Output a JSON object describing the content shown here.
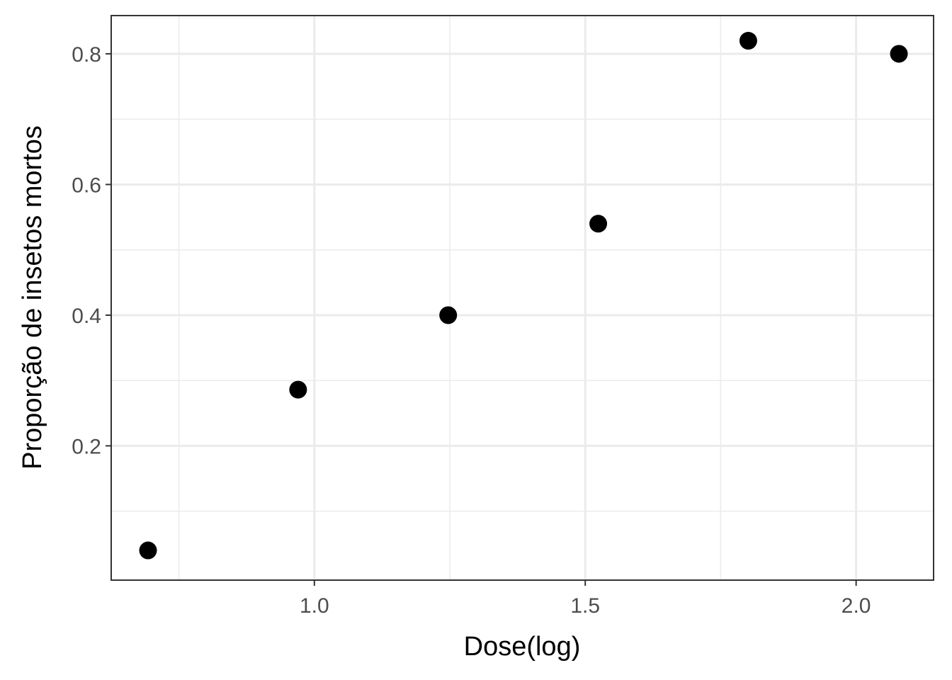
{
  "chart_data": {
    "type": "scatter",
    "title": "",
    "xlabel": "Dose(log)",
    "ylabel": "Proporção de insetos mortos",
    "xlim": [
      0.625,
      2.143
    ],
    "ylim": [
      -0.0055,
      0.8585
    ],
    "x_major_ticks": [
      1.0,
      1.5,
      2.0
    ],
    "x_major_tick_labels": [
      "1.0",
      "1.5",
      "2.0"
    ],
    "x_minor_ticks": [
      0.75,
      1.25,
      1.75
    ],
    "y_major_ticks": [
      0.2,
      0.4,
      0.6,
      0.8
    ],
    "y_major_tick_labels": [
      "0.2",
      "0.4",
      "0.6",
      "0.8"
    ],
    "y_minor_ticks": [
      0.1,
      0.3,
      0.5,
      0.7
    ],
    "grid": true,
    "point_color": "#000000",
    "series": [
      {
        "x": [
          0.693,
          0.97,
          1.247,
          1.524,
          1.801,
          2.079
        ],
        "y": [
          0.04,
          0.286,
          0.4,
          0.54,
          0.82,
          0.8
        ]
      }
    ]
  }
}
